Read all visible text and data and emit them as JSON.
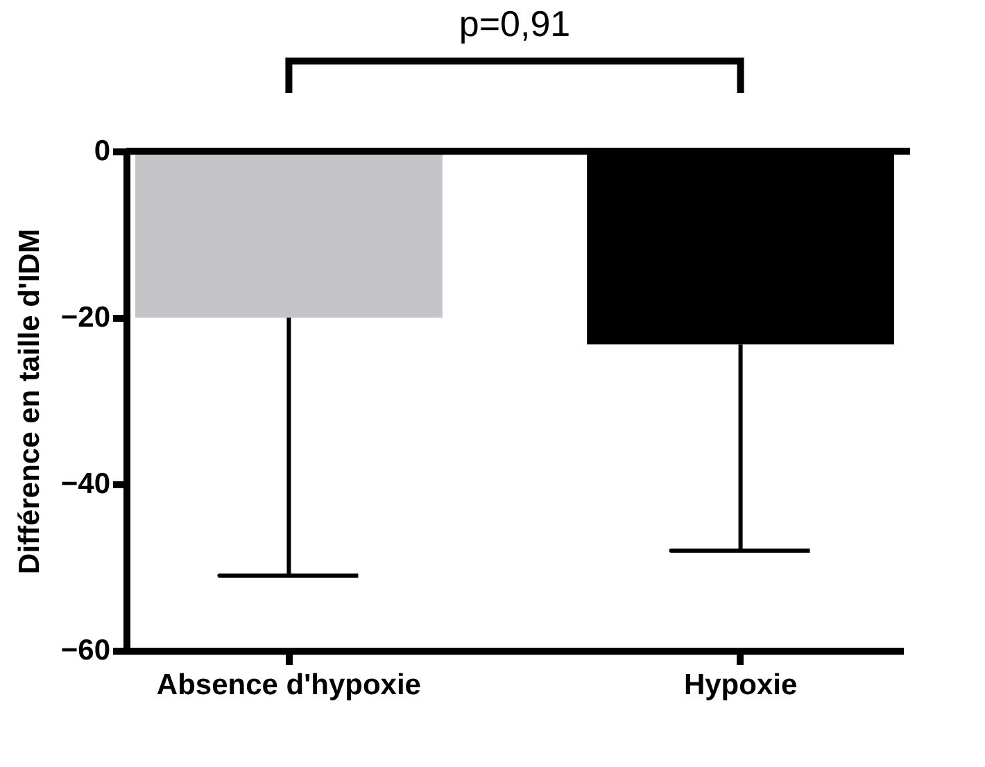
{
  "chart_data": {
    "type": "bar",
    "ylabel": "Différence en taille d'IDM",
    "categories": [
      "Absence d'hypoxie",
      "Hypoxie"
    ],
    "values": [
      -20,
      -23.2
    ],
    "colors": [
      "#c4c3c8",
      "#000000"
    ],
    "errors": [
      [
        -51,
        -20
      ],
      [
        -48,
        -23.2
      ]
    ],
    "ylim": [
      -60,
      0
    ],
    "yticks": [
      0,
      -20,
      -40,
      -60
    ],
    "grid": false,
    "annotations": [
      "p=0,91"
    ]
  }
}
